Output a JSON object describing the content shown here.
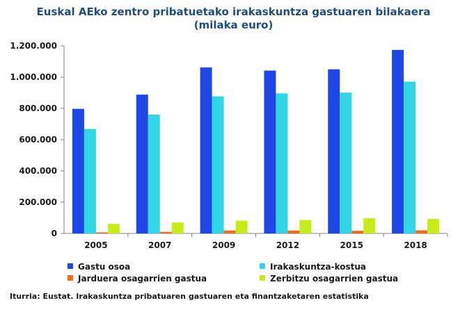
{
  "chart_data": {
    "type": "bar",
    "title": "Euskal AEko zentro pribatuetako irakaskuntza gastuaren bilakaera",
    "subtitle": "(milaka euro)",
    "categories": [
      "2005",
      "2007",
      "2009",
      "2012",
      "2015",
      "2018"
    ],
    "series": [
      {
        "name": "Gastu osoa",
        "color": "#1f47e6",
        "values": [
          797000,
          888000,
          1062000,
          1042000,
          1050000,
          1174000
        ]
      },
      {
        "name": "Irakaskuntza-kostua",
        "color": "#33d6e6",
        "values": [
          668000,
          760000,
          877000,
          896000,
          901000,
          971000
        ]
      },
      {
        "name": "Jarduera osagarrien gastua",
        "color": "#f26a1b",
        "values": [
          7000,
          10000,
          19000,
          19000,
          17000,
          20000
        ]
      },
      {
        "name": "Zerbitzu osagarrien gastua",
        "color": "#c6ec1a",
        "values": [
          61000,
          70000,
          82000,
          86000,
          97000,
          93000
        ]
      }
    ],
    "y_ticks": [
      "0",
      "200.000",
      "400.000",
      "600.000",
      "800.000",
      "1.000.000",
      "1.200.000"
    ],
    "ylim": [
      0,
      1200000
    ],
    "grid": false,
    "legend_position": "bottom"
  },
  "source": "Iturria: Eustat. Irakaskuntza pribatuaren gastuaren eta finantzaketaren estatistika"
}
